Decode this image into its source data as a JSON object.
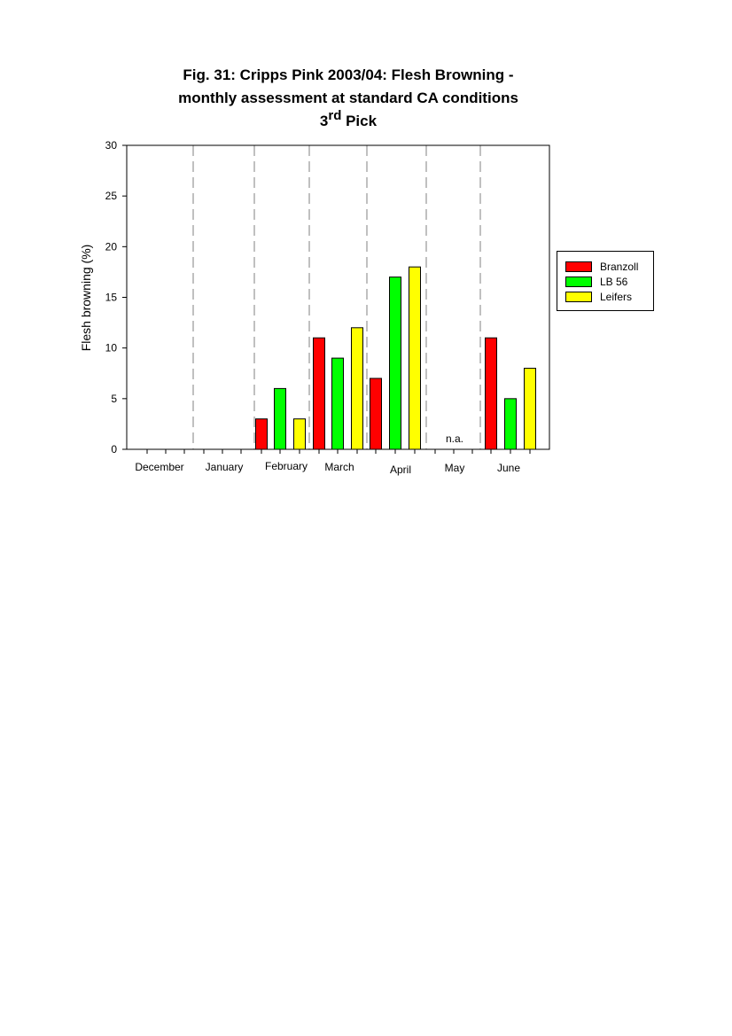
{
  "title": {
    "line1": "Fig. 31: Cripps Pink 2003/04: Flesh Browning -",
    "line2": "monthly assessment at standard CA conditions",
    "line3_prefix": "3",
    "line3_superscript": "rd",
    "line3_suffix": " Pick"
  },
  "chart_data": {
    "type": "bar",
    "ylabel": "Flesh browning (%)",
    "xlabel": "",
    "ylim": [
      0,
      30
    ],
    "yticks": [
      0,
      5,
      10,
      15,
      20,
      25,
      30
    ],
    "categories": [
      "December",
      "January",
      "February",
      "March",
      "April",
      "May",
      "June"
    ],
    "series": [
      {
        "name": "Branzoll",
        "color": "#ff0000",
        "values": [
          0,
          0,
          3,
          11,
          7,
          null,
          11
        ]
      },
      {
        "name": "LB 56",
        "color": "#00ff00",
        "values": [
          0,
          0,
          6,
          9,
          17,
          null,
          5
        ]
      },
      {
        "name": "Leifers",
        "color": "#ffff00",
        "values": [
          0,
          0,
          3,
          12,
          18,
          null,
          8
        ]
      }
    ],
    "annotations": [
      {
        "category": "May",
        "text": "n.a."
      }
    ],
    "month_separators": "dashed",
    "legend_position": "right"
  }
}
